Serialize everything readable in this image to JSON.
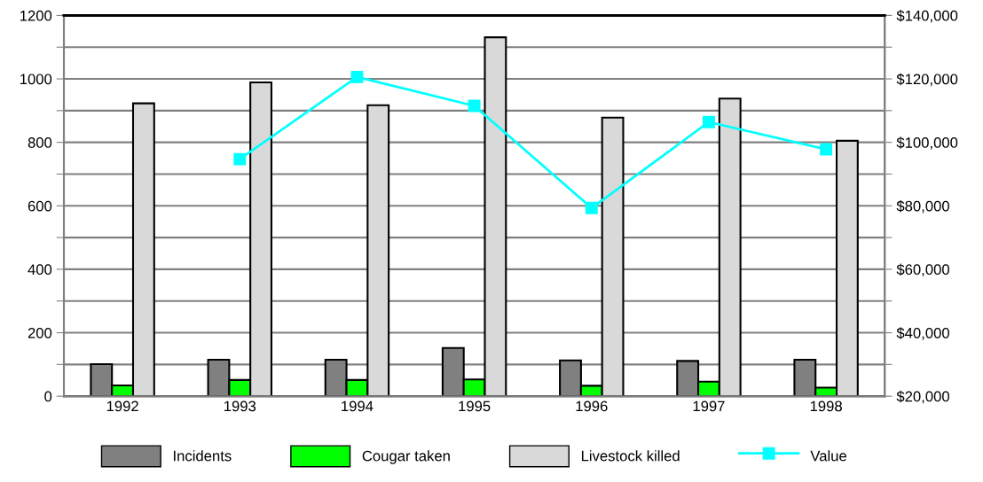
{
  "chart_data": {
    "type": "bar",
    "categories": [
      "1992",
      "1993",
      "1994",
      "1995",
      "1996",
      "1997",
      "1998"
    ],
    "series": [
      {
        "name": "Incidents",
        "color": "#808080",
        "values": [
          101,
          115,
          115,
          152,
          113,
          111,
          115
        ]
      },
      {
        "name": "Cougar taken",
        "color": "#00ff00",
        "values": [
          34,
          51,
          51,
          53,
          33,
          46,
          27
        ]
      },
      {
        "name": "Livestock killed",
        "color": "#d9d9d9",
        "values": [
          923,
          989,
          917,
          1131,
          878,
          938,
          805
        ]
      },
      {
        "name": "Value",
        "type": "line",
        "axis": "y2",
        "color": "#00ffff",
        "marker": "square",
        "values": [
          null,
          94700,
          120600,
          111500,
          79300,
          106400,
          97800
        ]
      }
    ],
    "ylim": [
      0,
      1200
    ],
    "yticks": [
      0,
      {
        "value": 100,
        "label": null
      },
      200,
      {
        "value": 300,
        "label": null
      },
      400,
      {
        "value": 500,
        "label": null
      },
      600,
      {
        "value": 700,
        "label": null
      },
      800,
      {
        "value": 900,
        "label": null
      },
      1000,
      {
        "value": 1100,
        "label": null
      },
      1200
    ],
    "y2lim": [
      20000,
      140000
    ],
    "y2ticks": [
      {
        "value": 20000,
        "label": "$20,000"
      },
      {
        "value": 30000,
        "label": null
      },
      {
        "value": 40000,
        "label": "$40,000"
      },
      {
        "value": 50000,
        "label": null
      },
      {
        "value": 60000,
        "label": "$60,000"
      },
      {
        "value": 70000,
        "label": null
      },
      {
        "value": 80000,
        "label": "$80,000"
      },
      {
        "value": 90000,
        "label": null
      },
      {
        "value": 100000,
        "label": "$100,000"
      },
      {
        "value": 110000,
        "label": null
      },
      {
        "value": 120000,
        "label": "$120,000"
      },
      {
        "value": 130000,
        "label": null
      },
      {
        "value": 140000,
        "label": "$140,000"
      }
    ],
    "grid": true,
    "legend": "bottom"
  }
}
